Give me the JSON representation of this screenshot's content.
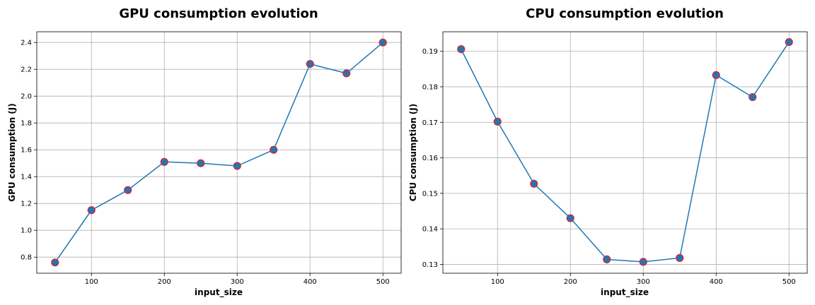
{
  "chart_data": [
    {
      "type": "line",
      "title": "GPU consumption evolution",
      "xlabel": "input_size",
      "ylabel": "GPU consumption (J)",
      "xlim": [
        25,
        525
      ],
      "ylim": [
        0.68,
        2.48
      ],
      "xticks": [
        100,
        200,
        300,
        400,
        500
      ],
      "yticks": [
        0.8,
        1.0,
        1.2,
        1.4,
        1.6,
        1.8,
        2.0,
        2.2,
        2.4
      ],
      "ytick_labels": [
        "0.8",
        "1.0",
        "1.2",
        "1.4",
        "1.6",
        "1.8",
        "2.0",
        "2.2",
        "2.4"
      ],
      "grid": true,
      "x": [
        50,
        100,
        150,
        200,
        250,
        300,
        350,
        400,
        450,
        500
      ],
      "series": [
        {
          "values": [
            0.76,
            1.15,
            1.3,
            1.51,
            1.5,
            1.48,
            1.6,
            2.24,
            2.17,
            2.4
          ]
        }
      ],
      "line_color": "#1f77b4",
      "marker_face": "#1f77b4",
      "marker_edge": "#e8202a"
    },
    {
      "type": "line",
      "title": "CPU consumption evolution",
      "xlabel": "input_size",
      "ylabel": "CPU consumption (J)",
      "xlim": [
        25,
        525
      ],
      "ylim": [
        0.1275,
        0.1955
      ],
      "xticks": [
        100,
        200,
        300,
        400,
        500
      ],
      "yticks": [
        0.13,
        0.14,
        0.15,
        0.16,
        0.17,
        0.18,
        0.19
      ],
      "ytick_labels": [
        "0.13",
        "0.14",
        "0.15",
        "0.16",
        "0.17",
        "0.18",
        "0.19"
      ],
      "grid": true,
      "x": [
        50,
        100,
        150,
        200,
        250,
        300,
        350,
        400,
        450,
        500
      ],
      "series": [
        {
          "values": [
            0.1906,
            0.1702,
            0.1527,
            0.143,
            0.1314,
            0.1307,
            0.1318,
            0.1833,
            0.1771,
            0.1926
          ]
        }
      ],
      "line_color": "#1f77b4",
      "marker_face": "#1f77b4",
      "marker_edge": "#e8202a"
    }
  ]
}
